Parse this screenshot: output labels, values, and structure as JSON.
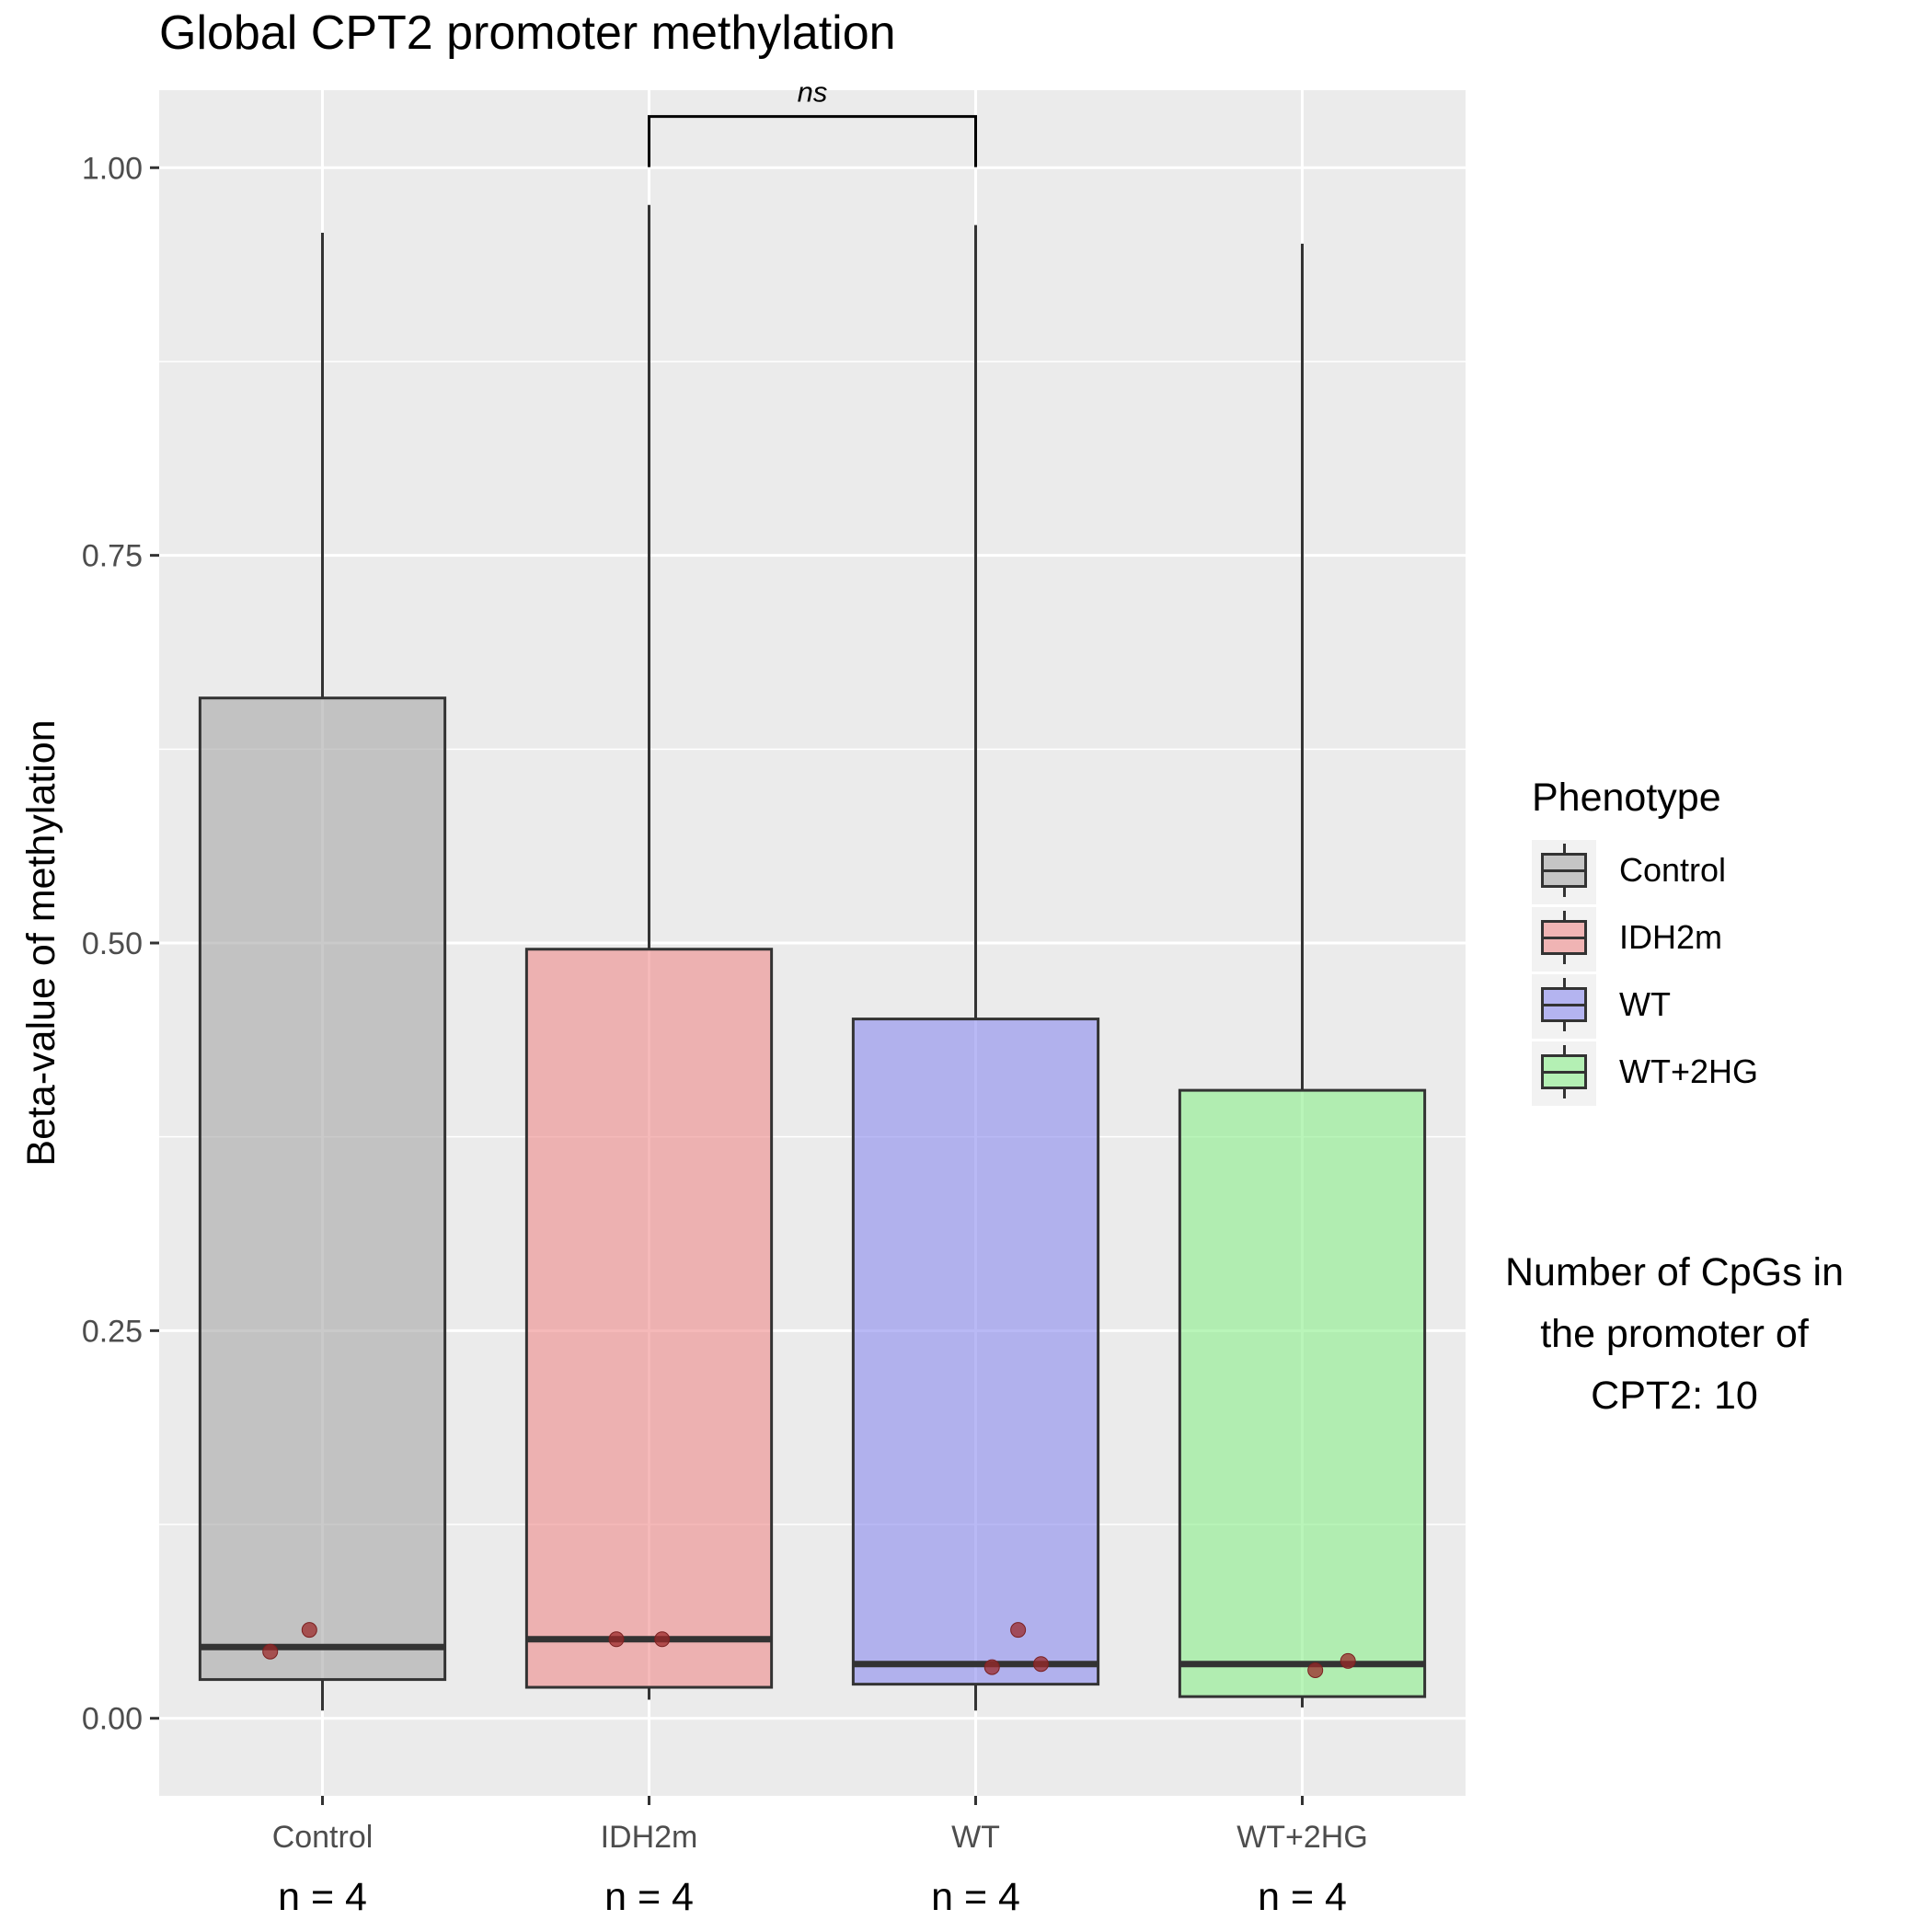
{
  "chart_data": {
    "type": "box",
    "title": "Global CPT2 promoter methylation",
    "xlabel": "",
    "ylabel": "Beta-value of methylation",
    "ylim": [
      -0.05,
      1.05
    ],
    "yticks": [
      0.0,
      0.25,
      0.5,
      0.75,
      1.0
    ],
    "ytick_labels": [
      "0.00",
      "0.25",
      "0.50",
      "0.75",
      "1.00"
    ],
    "categories": [
      "Control",
      "IDH2m",
      "WT",
      "WT+2HG"
    ],
    "group_counts": [
      "n = 4",
      "n = 4",
      "n = 4",
      "n = 4"
    ],
    "boxes": [
      {
        "name": "Control",
        "min": 0.005,
        "q1": 0.025,
        "median": 0.046,
        "q3": 0.658,
        "max": 0.958,
        "color": "#a6a6a6"
      },
      {
        "name": "IDH2m",
        "min": 0.012,
        "q1": 0.02,
        "median": 0.051,
        "q3": 0.496,
        "max": 0.976,
        "color": "#ef8a8a"
      },
      {
        "name": "WT",
        "min": 0.005,
        "q1": 0.022,
        "median": 0.035,
        "q3": 0.451,
        "max": 0.963,
        "color": "#8a8aef"
      },
      {
        "name": "WT+2HG",
        "min": 0.007,
        "q1": 0.014,
        "median": 0.035,
        "q3": 0.405,
        "max": 0.951,
        "color": "#8aef8a"
      }
    ],
    "points": [
      {
        "group": 0,
        "offset": -0.16,
        "y": 0.043
      },
      {
        "group": 0,
        "offset": -0.04,
        "y": 0.057
      },
      {
        "group": 1,
        "offset": -0.1,
        "y": 0.051
      },
      {
        "group": 1,
        "offset": 0.04,
        "y": 0.051
      },
      {
        "group": 2,
        "offset": 0.05,
        "y": 0.033
      },
      {
        "group": 2,
        "offset": 0.13,
        "y": 0.057
      },
      {
        "group": 2,
        "offset": 0.2,
        "y": 0.035
      },
      {
        "group": 3,
        "offset": 0.04,
        "y": 0.031
      },
      {
        "group": 3,
        "offset": 0.14,
        "y": 0.037
      }
    ],
    "point_color": "#9b2a2a",
    "comparison": {
      "from": 1,
      "to": 2,
      "y": 1.033,
      "label": "ns"
    },
    "grid": true,
    "panel_background": "#ebebeb",
    "legend": {
      "title": "Phenotype",
      "position": "right",
      "items": [
        "Control",
        "IDH2m",
        "WT",
        "WT+2HG"
      ]
    }
  },
  "note_lines": [
    "Number of CpGs in",
    "the promoter of",
    "CPT2: 10"
  ]
}
